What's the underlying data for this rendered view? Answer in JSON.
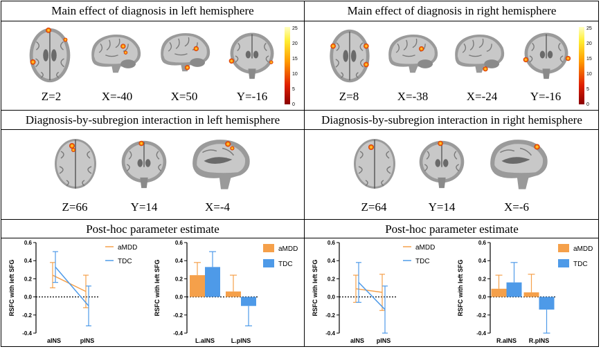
{
  "panels": {
    "main_left": {
      "title": "Main effect of diagnosis in left hemisphere",
      "coords": [
        "Z=2",
        "X=-40",
        "X=50",
        "Y=-16"
      ]
    },
    "main_right": {
      "title": "Main effect of diagnosis in right hemisphere",
      "coords": [
        "Z=8",
        "X=-38",
        "X=-24",
        "Y=-16"
      ]
    },
    "inter_left": {
      "title": "Diagnosis-by-subregion interaction in left hemisphere",
      "coords": [
        "Z=66",
        "Y=14",
        "X=-4"
      ]
    },
    "inter_right": {
      "title": "Diagnosis-by-subregion interaction in right hemisphere",
      "coords": [
        "Z=64",
        "Y=14",
        "X=-6"
      ]
    },
    "posthoc_left": {
      "title": "Post-hoc parameter estimate"
    },
    "posthoc_right": {
      "title": "Post-hoc parameter estimate"
    }
  },
  "colorbar": {
    "ticks": [
      "25",
      "20",
      "15",
      "10",
      "5",
      "0"
    ]
  },
  "colors": {
    "aMDD": "#f5a04a",
    "TDC": "#4e9ae8"
  },
  "chart_data": [
    {
      "type": "line",
      "ylabel": "RSFC  with left SFG",
      "categories": [
        "aINS",
        "pINS"
      ],
      "ylim": [
        -0.4,
        0.6
      ],
      "yticks": [
        "0.6",
        "0.4",
        "0.2",
        "0.0",
        "-0.2",
        "-0.4"
      ],
      "legend_position": "top-right",
      "series": [
        {
          "name": "aMDD",
          "values": [
            0.24,
            0.06
          ],
          "err": [
            0.14,
            0.18
          ]
        },
        {
          "name": "TDC",
          "values": [
            0.33,
            -0.1
          ],
          "err": [
            0.17,
            0.22
          ]
        }
      ]
    },
    {
      "type": "bar",
      "ylabel": "RSFC  with left SFG",
      "categories": [
        "L.aINS",
        "L.pINS"
      ],
      "ylim": [
        -0.4,
        0.6
      ],
      "yticks": [
        "0.6",
        "0.4",
        "0.2",
        "0.0",
        "-0.2",
        "-0.4"
      ],
      "legend_position": "top-right",
      "series": [
        {
          "name": "aMDD",
          "values": [
            0.24,
            0.06
          ],
          "err": [
            0.14,
            0.18
          ]
        },
        {
          "name": "TDC",
          "values": [
            0.33,
            -0.1
          ],
          "err": [
            0.17,
            0.22
          ]
        }
      ]
    },
    {
      "type": "line",
      "ylabel": "RSFC  with left SFG",
      "categories": [
        "aINS",
        "pINS"
      ],
      "ylim": [
        -0.4,
        0.6
      ],
      "yticks": [
        "0.6",
        "0.4",
        "0.2",
        "0.0",
        "-0.2",
        "-0.4"
      ],
      "legend_position": "top-right",
      "series": [
        {
          "name": "aMDD",
          "values": [
            0.09,
            0.05
          ],
          "err": [
            0.15,
            0.2
          ]
        },
        {
          "name": "TDC",
          "values": [
            0.16,
            -0.14
          ],
          "err": [
            0.22,
            0.26
          ]
        }
      ]
    },
    {
      "type": "bar",
      "ylabel": "RSFC  with left SFG",
      "categories": [
        "R.aINS",
        "R.pINS"
      ],
      "ylim": [
        -0.4,
        0.6
      ],
      "yticks": [
        "0.6",
        "0.4",
        "0.2",
        "0.0",
        "-0.2",
        "-0.4"
      ],
      "legend_position": "top-right",
      "series": [
        {
          "name": "aMDD",
          "values": [
            0.09,
            0.05
          ],
          "err": [
            0.15,
            0.2
          ]
        },
        {
          "name": "TDC",
          "values": [
            0.16,
            -0.14
          ],
          "err": [
            0.22,
            0.26
          ]
        }
      ]
    }
  ]
}
